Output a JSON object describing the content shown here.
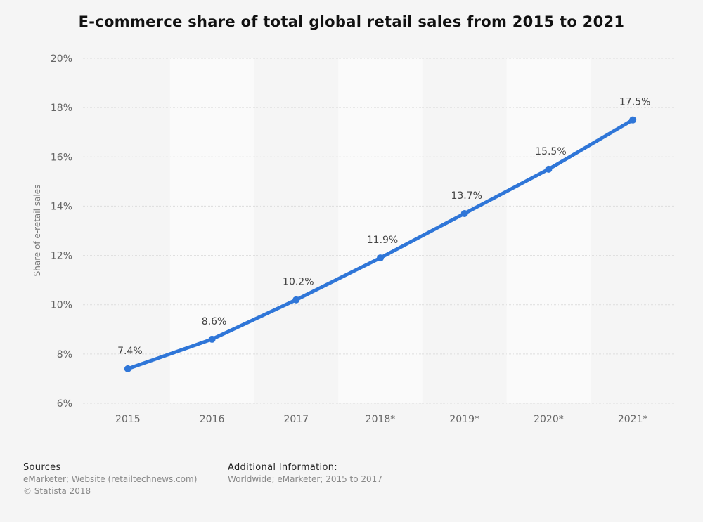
{
  "chart_data": {
    "type": "line",
    "title": "E-commerce share of total global retail sales from 2015 to 2021",
    "ylabel": "Share of e-retail sales",
    "xlabel": "",
    "categories": [
      "2015",
      "2016",
      "2017",
      "2018*",
      "2019*",
      "2020*",
      "2021*"
    ],
    "series": [
      {
        "values": [
          7.4,
          8.6,
          10.2,
          11.9,
          13.7,
          15.5,
          17.5
        ],
        "data_labels": [
          "7.4%",
          "8.6%",
          "10.2%",
          "11.9%",
          "13.7%",
          "15.5%",
          "17.5%"
        ],
        "color": "#2f76d8"
      }
    ],
    "ylim": [
      6,
      20
    ],
    "yticks": [
      6,
      8,
      10,
      12,
      14,
      16,
      18,
      20
    ],
    "ytick_labels": [
      "6%",
      "8%",
      "10%",
      "12%",
      "14%",
      "16%",
      "18%",
      "20%"
    ],
    "grid": true,
    "legend": "none"
  },
  "footer": {
    "sources_heading": "Sources",
    "sources_line1": "eMarketer; Website (retailtechnews.com)",
    "sources_line2": "© Statista 2018",
    "additional_heading": "Additional Information:",
    "additional_text": "Worldwide; eMarketer; 2015 to 2017"
  },
  "colors": {
    "background": "#f5f5f5",
    "band": "#fafafa",
    "gridline": "#dddddd",
    "line": "#2f76d8"
  }
}
